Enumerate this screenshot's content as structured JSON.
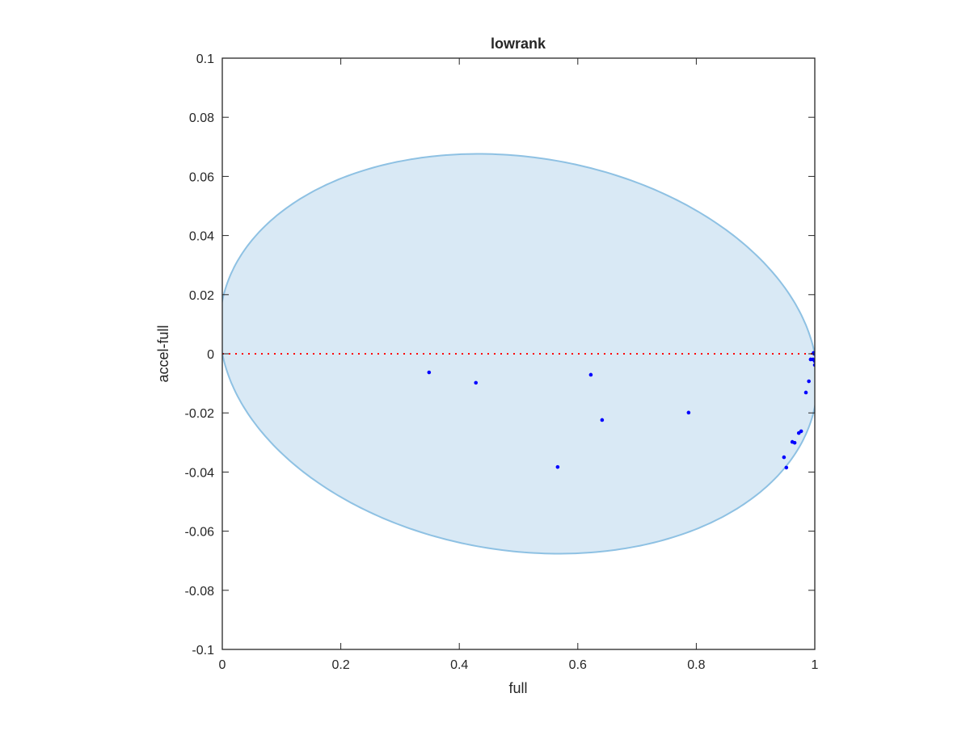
{
  "chart_data": {
    "type": "scatter",
    "title": "lowrank",
    "xlabel": "full",
    "ylabel": "accel-full",
    "xlim": [
      0,
      1
    ],
    "ylim": [
      -0.1,
      0.1
    ],
    "xticks": [
      "0",
      "0.2",
      "0.4",
      "0.6",
      "0.8",
      "1"
    ],
    "yticks": [
      "-0.1",
      "-0.08",
      "-0.06",
      "-0.04",
      "-0.02",
      "0",
      "0.02",
      "0.04",
      "0.06",
      "0.08",
      "0.1"
    ],
    "xtick_values": [
      0,
      0.2,
      0.4,
      0.6,
      0.8,
      1
    ],
    "ytick_values": [
      -0.1,
      -0.08,
      -0.06,
      -0.04,
      -0.02,
      0,
      0.02,
      0.04,
      0.06,
      0.08,
      0.1
    ],
    "grid": false,
    "points": [
      [
        0.349,
        -0.0063
      ],
      [
        0.428,
        -0.0098
      ],
      [
        0.622,
        -0.0071
      ],
      [
        0.641,
        -0.0224
      ],
      [
        0.566,
        -0.0383
      ],
      [
        0.787,
        -0.0199
      ],
      [
        0.99,
        -0.0093
      ],
      [
        0.985,
        -0.0131
      ],
      [
        0.977,
        -0.0262
      ],
      [
        0.973,
        -0.0268
      ],
      [
        0.962,
        -0.0298
      ],
      [
        0.966,
        -0.0301
      ],
      [
        0.948,
        -0.035
      ],
      [
        0.952,
        -0.0385
      ],
      [
        0.999,
        0.0
      ],
      [
        0.997,
        -0.0019
      ],
      [
        1.0,
        -0.0025
      ],
      [
        1.0,
        -0.0038
      ],
      [
        0.993,
        -0.0019
      ],
      [
        1.0,
        0.0
      ],
      [
        0.998,
        0.0003
      ]
    ],
    "ellipse": {
      "center": [
        0.5,
        0.0
      ],
      "x_semi_axis": 0.5045,
      "y_semi_axis": 0.067,
      "y_shear": -0.0091
    },
    "reference_line": {
      "y": 0,
      "style": "dotted"
    },
    "colors": {
      "points": "#0000ff",
      "ellipse_fill": "#d9e9f5",
      "ellipse_edge": "#8ec1e3",
      "reference_line": "#ff0000",
      "axes": "#262626"
    }
  }
}
